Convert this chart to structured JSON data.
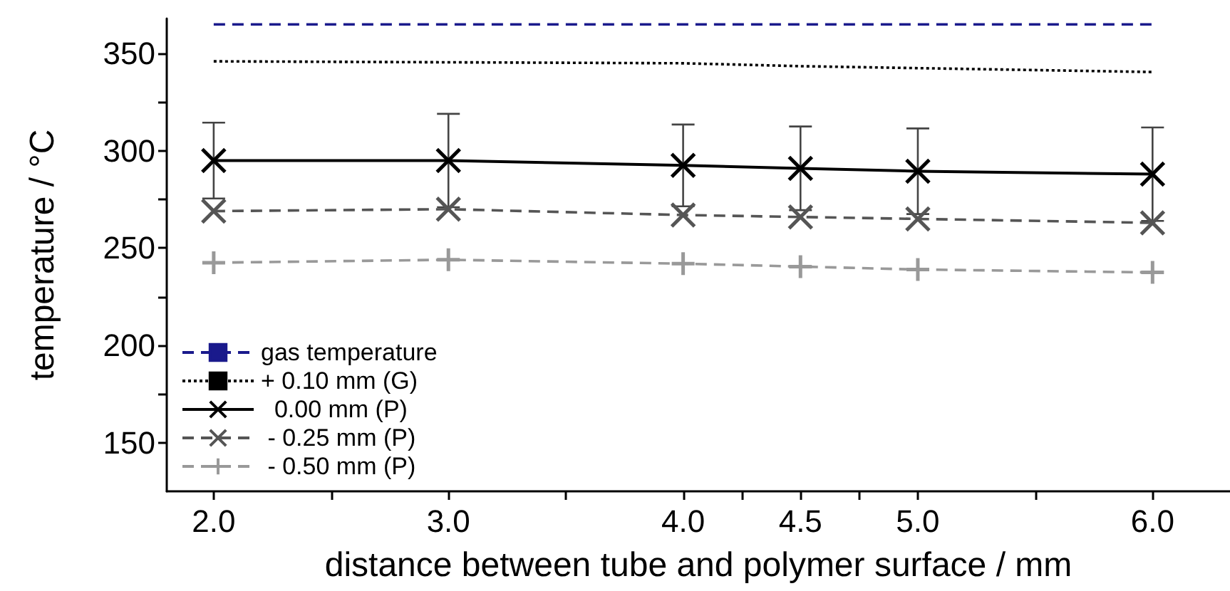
{
  "chart_data": {
    "type": "line",
    "xlabel": "distance between tube and polymer surface / mm",
    "ylabel": "temperature / °C",
    "x": [
      2.0,
      3.0,
      4.0,
      4.5,
      5.0,
      6.0
    ],
    "xlim": [
      1.8,
      6.33
    ],
    "xticks": [
      {
        "value": 2.0,
        "label": "2.0"
      },
      {
        "value": 2.5,
        "label": null
      },
      {
        "value": 3.0,
        "label": "3.0"
      },
      {
        "value": 3.5,
        "label": null
      },
      {
        "value": 4.0,
        "label": "4.0"
      },
      {
        "value": 4.25,
        "label": null
      },
      {
        "value": 4.5,
        "label": "4.5"
      },
      {
        "value": 4.75,
        "label": null
      },
      {
        "value": 5.0,
        "label": "5.0"
      },
      {
        "value": 5.5,
        "label": null
      },
      {
        "value": 6.0,
        "label": "6.0"
      }
    ],
    "ylim": [
      125,
      368
    ],
    "yticks": [
      150,
      {
        "value": 175,
        "label": null
      },
      200,
      {
        "value": 225,
        "label": null
      },
      250,
      {
        "value": 275,
        "label": null
      },
      300,
      {
        "value": 325,
        "label": null
      },
      350
    ],
    "legend": "bottom left",
    "series": [
      {
        "name": "gas temperature",
        "color": "#1a1a8c",
        "x": [
          2.0,
          6.0
        ],
        "values": [
          365,
          365
        ],
        "line_style": "dashed",
        "marker": "none"
      },
      {
        "name": "+ 0.10 mm (G)",
        "color": "#000000",
        "values": [
          346,
          345.5,
          345,
          343.5,
          342.5,
          340.5
        ],
        "line_style": "dotted",
        "marker": "none"
      },
      {
        "name": "  0.00 mm (P)",
        "color": "#000000",
        "values": [
          295,
          295,
          292.5,
          291,
          289.5,
          288
        ],
        "errors": [
          19.5,
          24,
          21,
          21.5,
          22,
          24
        ],
        "line_style": "solid",
        "marker": "cross"
      },
      {
        "name": " - 0.25 mm (P)",
        "color": "#555555",
        "values": [
          269,
          270,
          267,
          266,
          265,
          263
        ],
        "line_style": "dashed",
        "marker": "cross"
      },
      {
        "name": " - 0.50 mm (P)",
        "color": "#999999",
        "values": [
          242.5,
          244,
          242,
          240.5,
          239,
          237.5
        ],
        "line_style": "dashed",
        "marker": "plus"
      }
    ]
  }
}
